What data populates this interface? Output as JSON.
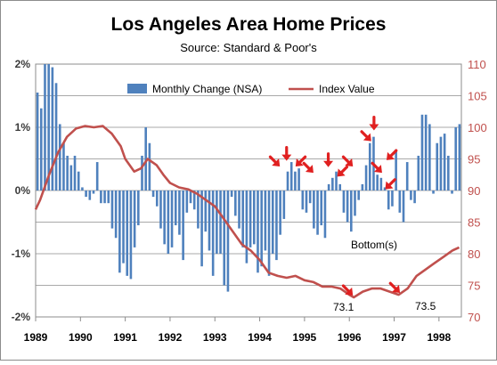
{
  "chart_data": {
    "type": "bar+line",
    "title": "Los Angeles Area Home Prices",
    "subtitle": "Source: Standard & Poor's",
    "legend_position": "top-center",
    "grid": true,
    "x_axis": {
      "range": [
        1989,
        1998.5
      ],
      "tick_labels": [
        "1989",
        "1990",
        "1991",
        "1992",
        "1993",
        "1994",
        "1995",
        "1996",
        "1997",
        "1998"
      ]
    },
    "y_left": {
      "range": [
        -2,
        2
      ],
      "tick_labels": [
        "2%",
        "1%",
        "0%",
        "-1%",
        "-2%"
      ],
      "color": "#3a3a3a"
    },
    "y_right": {
      "range": [
        70,
        110
      ],
      "tick_labels": [
        "110",
        "105",
        "100",
        "95",
        "90",
        "85",
        "80",
        "75",
        "70"
      ],
      "color": "#c0504d"
    },
    "series": [
      {
        "name": "Monthly Change (NSA)",
        "type": "bar",
        "axis": "left",
        "color": "#4f81bd",
        "start": 1989.0,
        "step": 0.0833333,
        "values": [
          1.55,
          1.3,
          2.0,
          2.0,
          1.95,
          1.7,
          1.05,
          0.75,
          0.55,
          0.4,
          0.55,
          0.3,
          0.05,
          -0.1,
          -0.15,
          -0.05,
          0.45,
          -0.2,
          -0.2,
          -0.2,
          -0.6,
          -0.75,
          -1.3,
          -1.15,
          -1.35,
          -1.4,
          -0.9,
          -0.55,
          0.55,
          1.0,
          0.75,
          -0.1,
          -0.25,
          -0.6,
          -0.85,
          -1.0,
          -0.9,
          -0.55,
          -0.7,
          -1.1,
          -0.35,
          -0.2,
          -0.3,
          -0.6,
          -1.2,
          -0.65,
          -0.95,
          -1.35,
          -1.0,
          -1.0,
          -1.5,
          -1.6,
          -0.1,
          -0.4,
          -0.6,
          -0.9,
          -1.15,
          -0.9,
          -0.85,
          -1.3,
          -1.2,
          -0.95,
          -1.35,
          -1.0,
          -1.1,
          -0.7,
          -0.45,
          0.3,
          0.45,
          0.3,
          0.35,
          -0.3,
          -0.35,
          -0.2,
          -0.6,
          -0.7,
          -0.55,
          -0.75,
          0.1,
          0.2,
          0.3,
          0.1,
          -0.35,
          -0.5,
          -0.65,
          -0.4,
          -0.15,
          0.1,
          0.4,
          0.75,
          0.85,
          0.25,
          0.2,
          0.05,
          -0.3,
          -0.25,
          0.65,
          -0.35,
          -0.5,
          0.45,
          -0.15,
          -0.2,
          0.55,
          1.2,
          1.2,
          1.05,
          -0.05,
          0.75,
          0.85,
          0.9,
          0.55,
          -0.05,
          1.0,
          1.05
        ]
      },
      {
        "name": "Index Value",
        "type": "line",
        "axis": "right",
        "color": "#c0504d",
        "points": [
          [
            1989.0,
            87.0
          ],
          [
            1989.1,
            88.5
          ],
          [
            1989.3,
            92.5
          ],
          [
            1989.5,
            96.0
          ],
          [
            1989.7,
            98.5
          ],
          [
            1989.9,
            99.8
          ],
          [
            1990.1,
            100.2
          ],
          [
            1990.3,
            100.0
          ],
          [
            1990.5,
            100.2
          ],
          [
            1990.7,
            99.0
          ],
          [
            1990.9,
            97.0
          ],
          [
            1991.0,
            95.0
          ],
          [
            1991.2,
            93.0
          ],
          [
            1991.35,
            93.5
          ],
          [
            1991.5,
            95.0
          ],
          [
            1991.7,
            94.0
          ],
          [
            1991.85,
            92.5
          ],
          [
            1992.0,
            91.2
          ],
          [
            1992.2,
            90.5
          ],
          [
            1992.4,
            90.2
          ],
          [
            1992.6,
            89.5
          ],
          [
            1992.8,
            88.5
          ],
          [
            1993.0,
            87.5
          ],
          [
            1993.2,
            85.5
          ],
          [
            1993.4,
            83.5
          ],
          [
            1993.6,
            81.5
          ],
          [
            1993.8,
            80.5
          ],
          [
            1994.0,
            79.0
          ],
          [
            1994.2,
            77.0
          ],
          [
            1994.4,
            76.5
          ],
          [
            1994.6,
            76.2
          ],
          [
            1994.8,
            76.5
          ],
          [
            1995.0,
            75.8
          ],
          [
            1995.2,
            75.5
          ],
          [
            1995.4,
            74.8
          ],
          [
            1995.6,
            74.8
          ],
          [
            1995.8,
            74.5
          ],
          [
            1996.0,
            73.5
          ],
          [
            1996.1,
            73.1
          ],
          [
            1996.3,
            74.0
          ],
          [
            1996.5,
            74.5
          ],
          [
            1996.7,
            74.5
          ],
          [
            1996.9,
            74.0
          ],
          [
            1997.1,
            73.5
          ],
          [
            1997.3,
            74.5
          ],
          [
            1997.5,
            76.5
          ],
          [
            1997.7,
            77.5
          ],
          [
            1997.9,
            78.5
          ],
          [
            1998.1,
            79.5
          ],
          [
            1998.3,
            80.5
          ],
          [
            1998.45,
            81.0
          ]
        ]
      }
    ],
    "annotations": {
      "bottom_label": "Bottom(s)",
      "low_1": "73.1",
      "low_2": "73.5"
    },
    "arrows": [
      {
        "tip_x": 1994.45,
        "tip_y": 0.38,
        "from": "upper-left"
      },
      {
        "tip_x": 1994.6,
        "tip_y": 0.47,
        "from": "above"
      },
      {
        "tip_x": 1994.8,
        "tip_y": 0.38,
        "from": "upper-right"
      },
      {
        "tip_x": 1995.2,
        "tip_y": 0.28,
        "from": "upper-left"
      },
      {
        "tip_x": 1995.53,
        "tip_y": 0.37,
        "from": "above"
      },
      {
        "tip_x": 1995.73,
        "tip_y": 0.22,
        "from": "upper-right"
      },
      {
        "tip_x": 1996.08,
        "tip_y": 0.38,
        "from": "upper-left"
      },
      {
        "tip_x": 1996.49,
        "tip_y": 0.78,
        "from": "upper-left"
      },
      {
        "tip_x": 1996.55,
        "tip_y": 0.95,
        "from": "above"
      },
      {
        "tip_x": 1996.73,
        "tip_y": 0.28,
        "from": "upper-left"
      },
      {
        "tip_x": 1996.83,
        "tip_y": 0.48,
        "from": "upper-right"
      },
      {
        "tip_x": 1996.8,
        "tip_y": 0.02,
        "from": "upper-right"
      },
      {
        "tip_x": 1996.08,
        "tip_y": 73.4,
        "from": "upper-left",
        "axis": "right"
      },
      {
        "tip_x": 1997.13,
        "tip_y": 73.8,
        "from": "upper-left",
        "axis": "right"
      }
    ]
  }
}
